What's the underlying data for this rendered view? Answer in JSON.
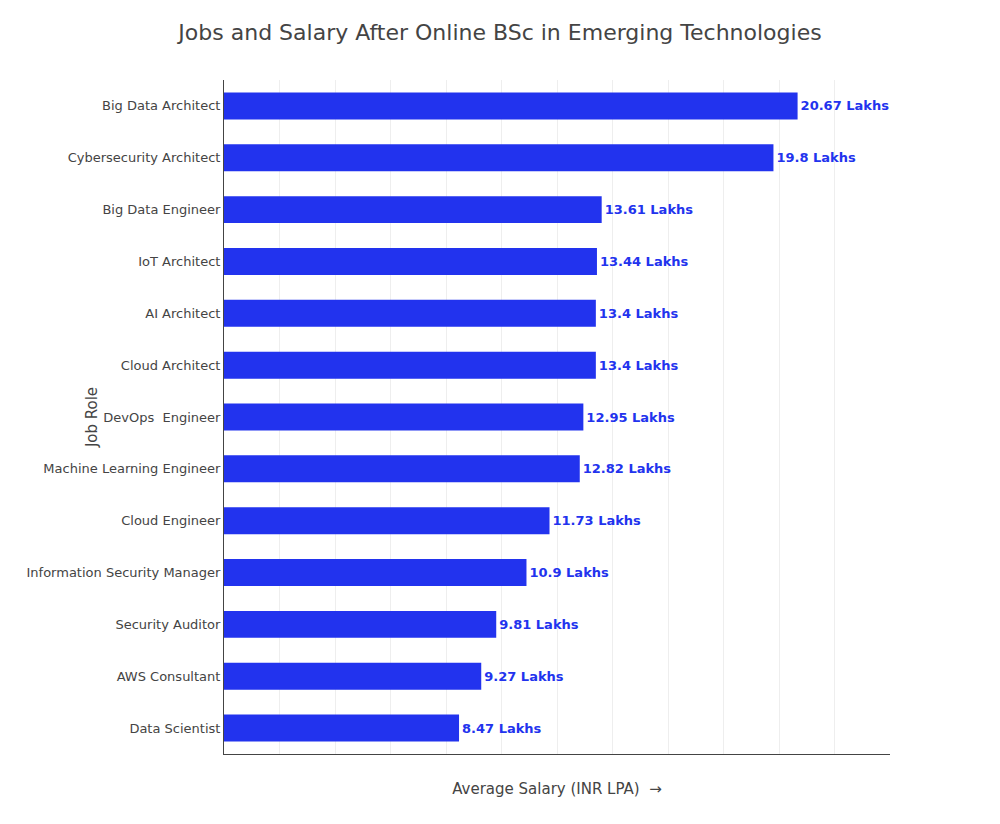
{
  "chart_data": {
    "type": "bar",
    "orientation": "horizontal",
    "title": "Jobs and Salary After Online BSc in Emerging Technologies",
    "xlabel": "Average Salary (INR LPA)  →",
    "ylabel": "Job Role",
    "categories": [
      "Big Data Architect",
      "Cybersecurity Architect",
      "Big Data Engineer",
      "IoT Architect",
      "AI Architect",
      "Cloud Architect",
      "DevOps  Engineer",
      "Machine Learning Engineer",
      "Cloud Engineer",
      "Information Security Manager",
      "Security Auditor",
      "AWS Consultant",
      "Data Scientist"
    ],
    "values": [
      20.67,
      19.8,
      13.61,
      13.44,
      13.4,
      13.4,
      12.95,
      12.82,
      11.73,
      10.9,
      9.81,
      9.27,
      8.47
    ],
    "value_labels": [
      "20.67 Lakhs",
      "19.8 Lakhs",
      "13.61 Lakhs",
      "13.44 Lakhs",
      "13.4 Lakhs",
      "13.4 Lakhs",
      "12.95 Lakhs",
      "12.82 Lakhs",
      "11.73 Lakhs",
      "10.9 Lakhs",
      "9.81 Lakhs",
      "9.27 Lakhs",
      "8.47 Lakhs"
    ],
    "data_labels": true,
    "color": "#2233ee",
    "xlim": [
      0,
      24
    ],
    "xticks": [
      0,
      2,
      4,
      6,
      8,
      10,
      12,
      14,
      16,
      18,
      20,
      22,
      24
    ],
    "grid": true,
    "tick_labels": "y"
  }
}
